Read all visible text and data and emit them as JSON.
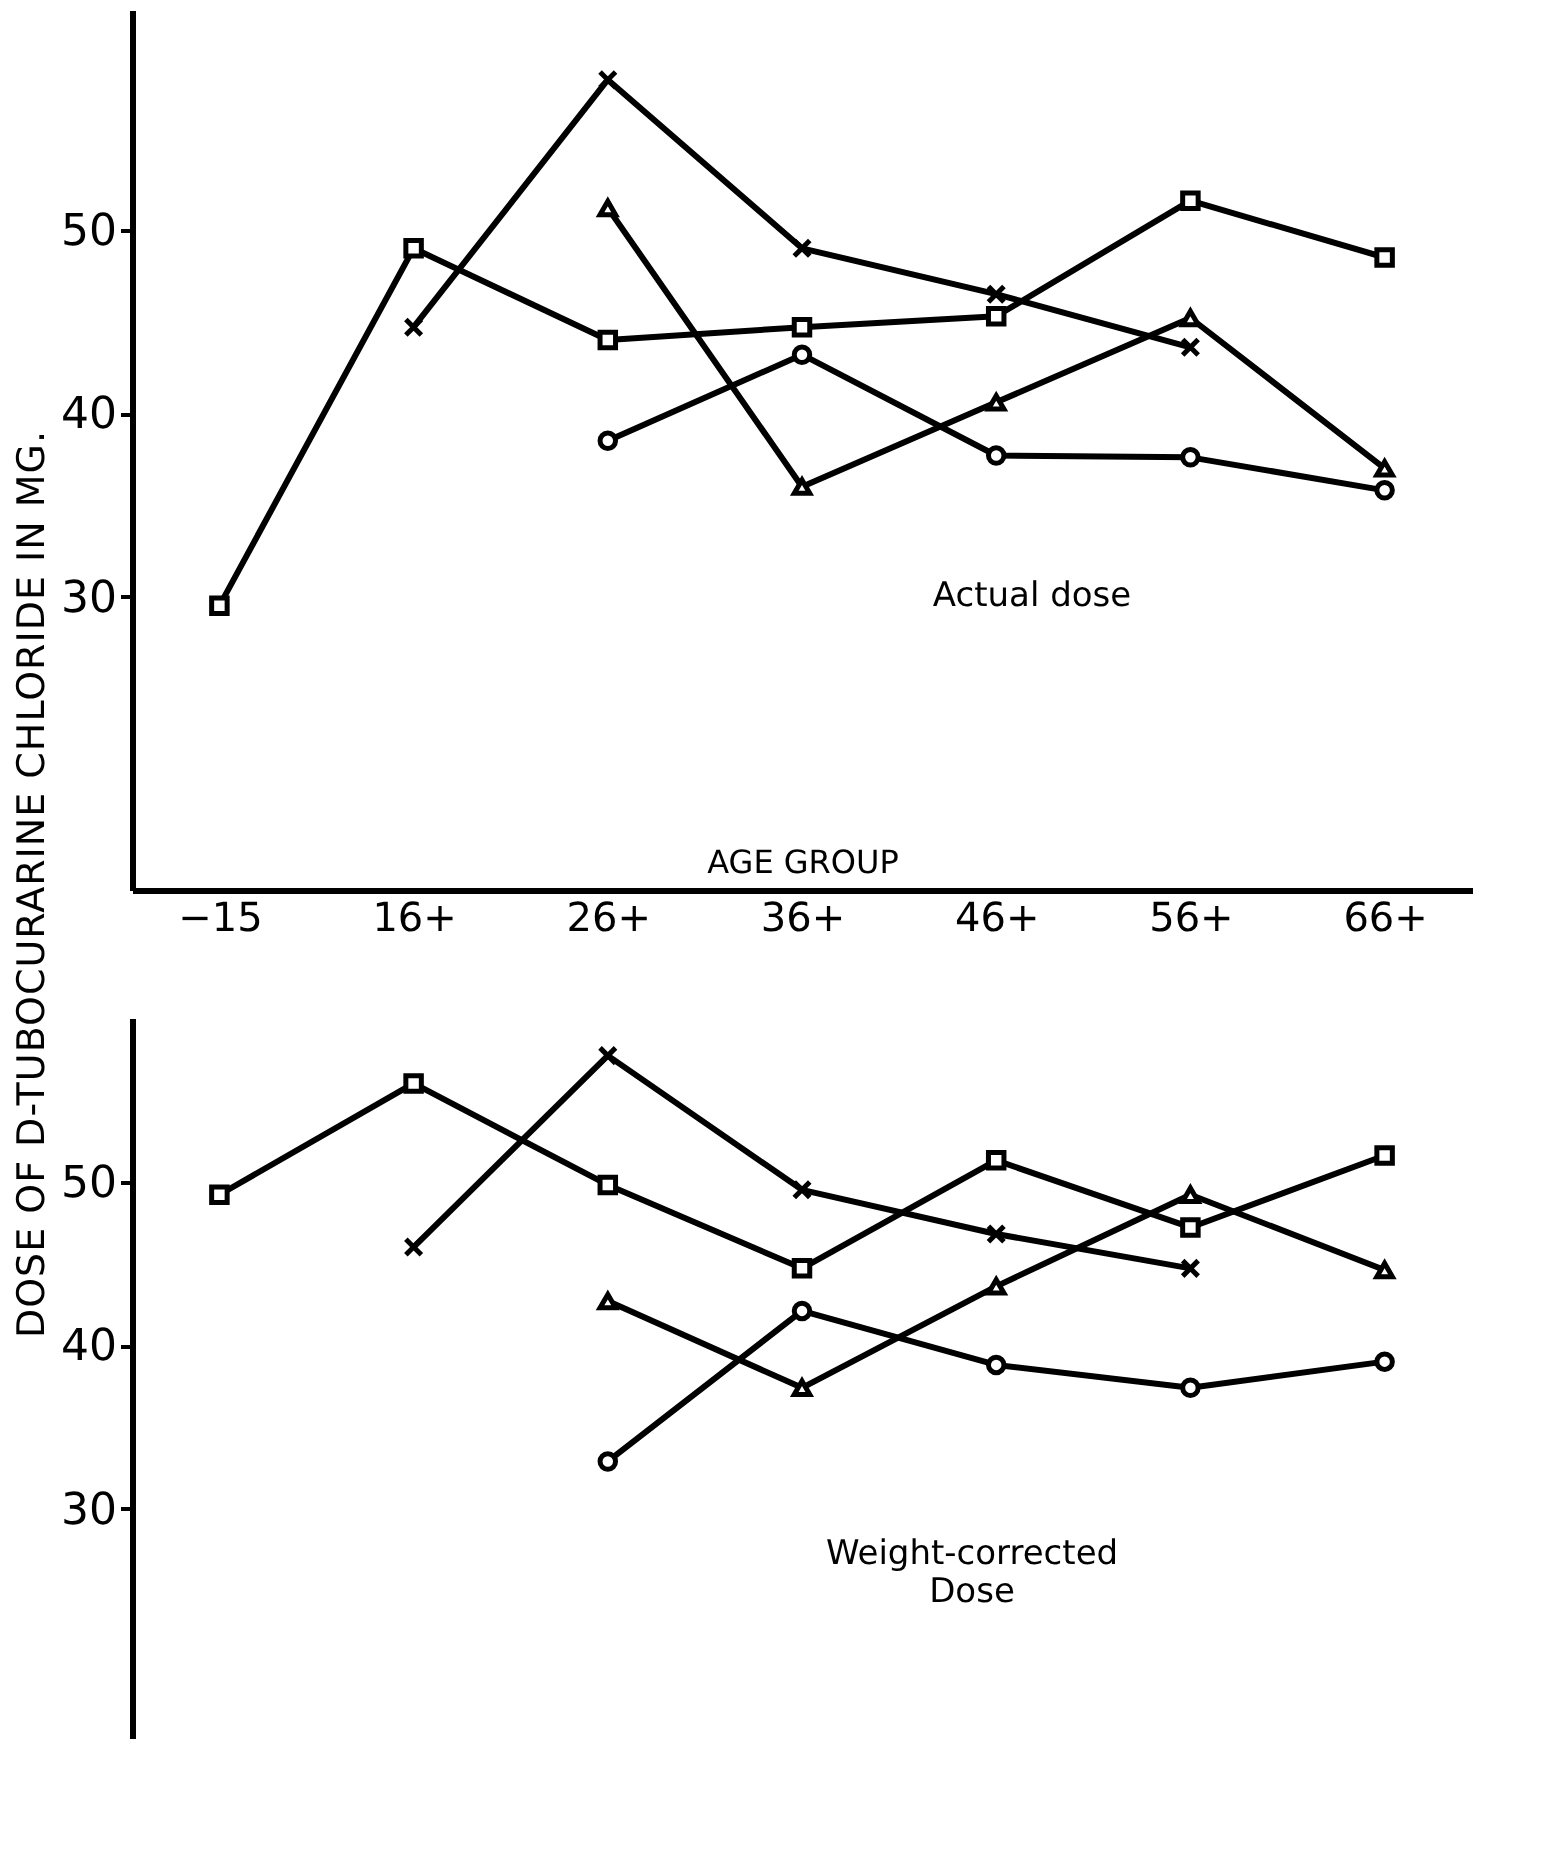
{
  "chart_data": [
    {
      "type": "line",
      "ylabel": "DOSE OF D-TUBOCURARINE CHLORIDE IN MG.",
      "xlabel": "AGE GROUP",
      "annotations": [
        "Actual dose"
      ],
      "categories": [
        "−15",
        "16+",
        "26+",
        "36+",
        "46+",
        "56+",
        "66+"
      ],
      "ylim": [
        14,
        62
      ],
      "yticks": [
        30,
        40,
        50
      ],
      "grid": false,
      "legend": false,
      "tick_labels": "xy",
      "series": [
        {
          "color": "#000000",
          "marker": "square",
          "values": [
            29.5,
            49,
            44,
            44.7,
            45.3,
            51.6,
            48.5
          ]
        },
        {
          "color": "#000000",
          "marker": "cross",
          "values": [
            null,
            44.7,
            58.2,
            49,
            46.5,
            43.6,
            null
          ]
        },
        {
          "color": "#000000",
          "marker": "triangle",
          "values": [
            null,
            null,
            51.2,
            36,
            40.6,
            45.2,
            37
          ]
        },
        {
          "color": "#000000",
          "marker": "circle",
          "values": [
            null,
            null,
            38.5,
            43.2,
            37.7,
            37.6,
            35.8
          ]
        }
      ]
    },
    {
      "type": "line",
      "annotations": [
        "Weight-corrected\nDose"
      ],
      "categories": [
        null,
        null,
        null,
        null,
        null,
        null,
        null
      ],
      "ylim": [
        16,
        60
      ],
      "yticks": [
        30,
        40,
        50
      ],
      "grid": false,
      "legend": false,
      "tick_labels": "y",
      "series": [
        {
          "color": "#000000",
          "marker": "square",
          "values": [
            49.2,
            56,
            49.8,
            44.7,
            51.3,
            47.2,
            51.6
          ]
        },
        {
          "color": "#000000",
          "marker": "cross",
          "values": [
            null,
            46,
            57.7,
            49.5,
            46.8,
            44.7,
            null
          ]
        },
        {
          "color": "#000000",
          "marker": "triangle",
          "values": [
            null,
            null,
            42.7,
            37.4,
            43.6,
            49.2,
            44.6
          ]
        },
        {
          "color": "#000000",
          "marker": "circle",
          "values": [
            null,
            null,
            32.9,
            42.1,
            38.8,
            37.4,
            39
          ]
        }
      ]
    }
  ]
}
